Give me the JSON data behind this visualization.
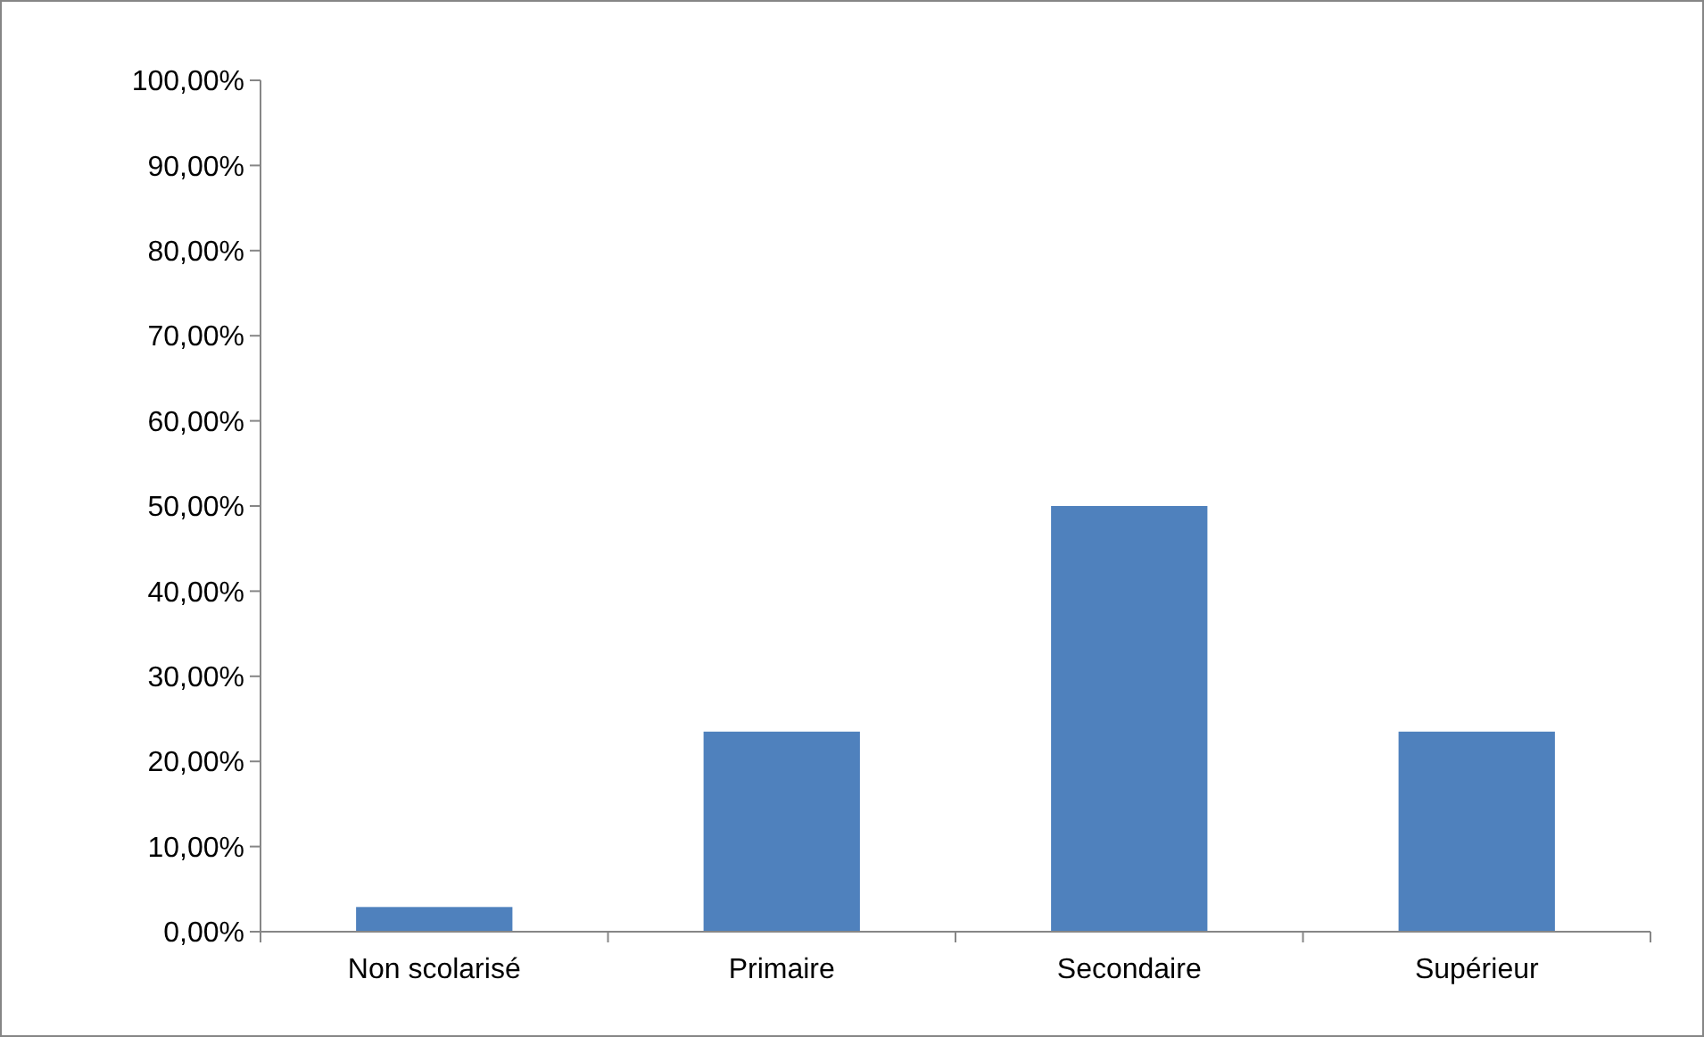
{
  "chart_data": {
    "type": "bar",
    "categories": [
      "Non scolarisé",
      "Primaire",
      "Secondaire",
      "Supérieur"
    ],
    "values": [
      2.9,
      23.5,
      50,
      23.5
    ],
    "color": "#4f81bd",
    "ylim": [
      0,
      100
    ],
    "yticks": [
      {
        "value": 0,
        "label": "0,00%"
      },
      {
        "value": 10,
        "label": "10,00%"
      },
      {
        "value": 20,
        "label": "20,00%"
      },
      {
        "value": 30,
        "label": "30,00%"
      },
      {
        "value": 40,
        "label": "40,00%"
      },
      {
        "value": 50,
        "label": "50,00%"
      },
      {
        "value": 60,
        "label": "60,00%"
      },
      {
        "value": 70,
        "label": "70,00%"
      },
      {
        "value": 80,
        "label": "80,00%"
      },
      {
        "value": 90,
        "label": "90,00%"
      },
      {
        "value": 100,
        "label": "100,00%"
      }
    ],
    "grid": false
  }
}
